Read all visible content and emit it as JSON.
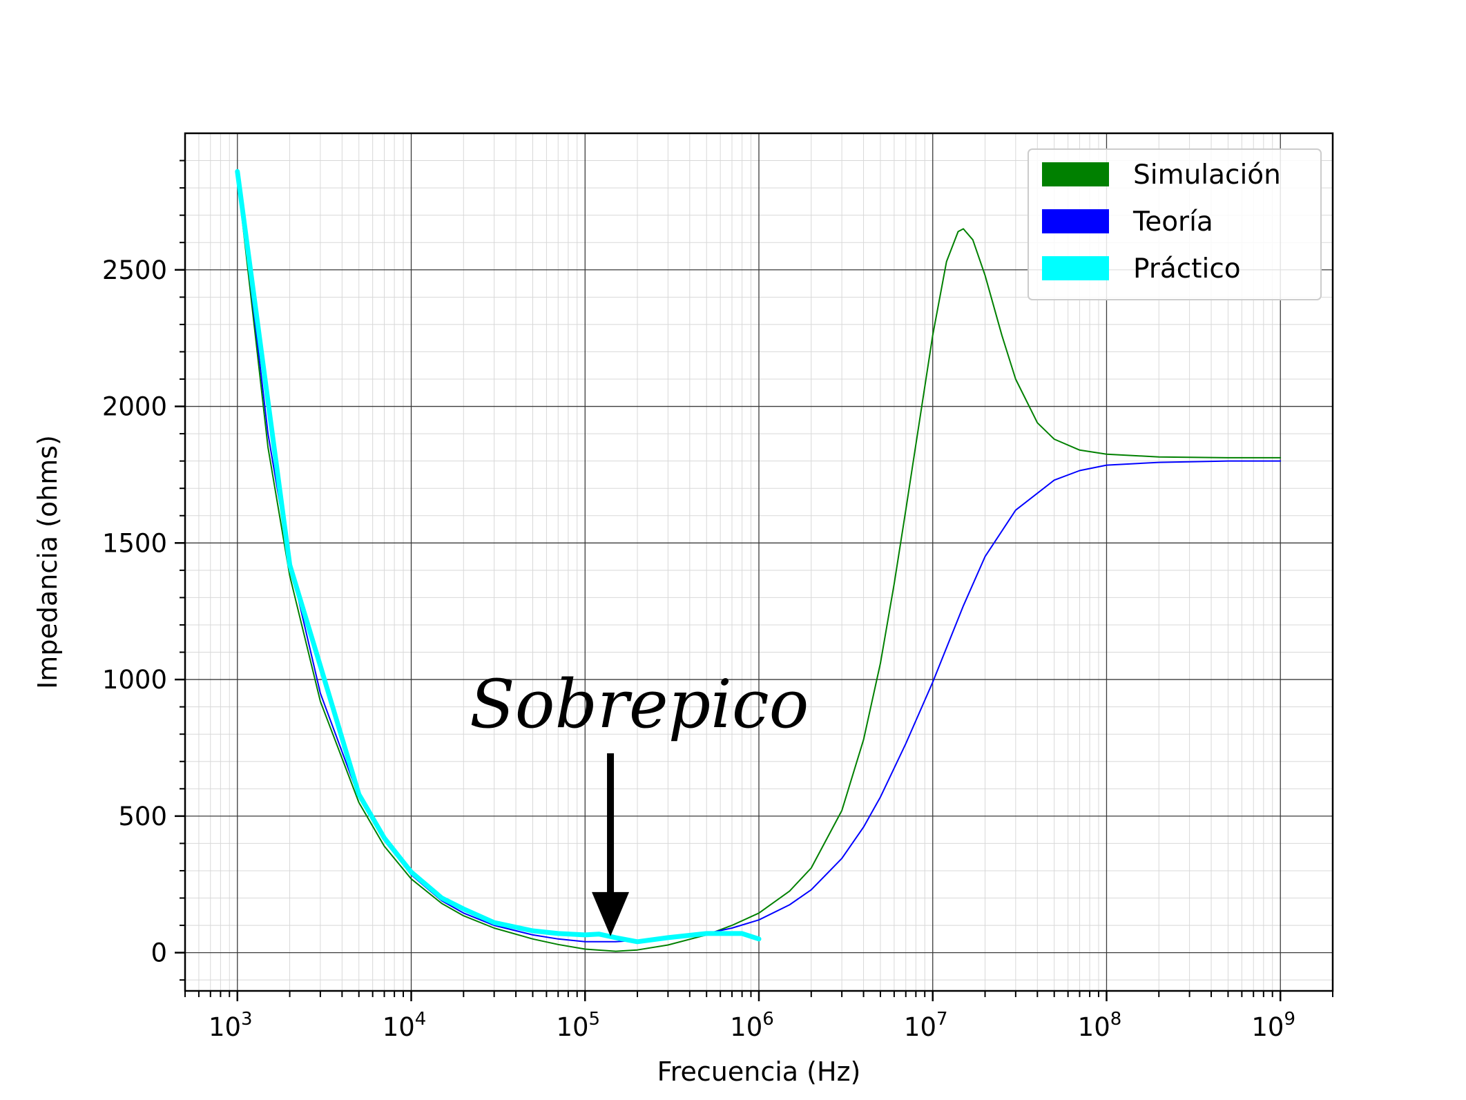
{
  "chart_data": {
    "type": "line",
    "title": "",
    "xlabel": "Frecuencia (Hz)",
    "ylabel": "Impedancia (ohms)",
    "xscale": "log",
    "xlim": [
      500,
      2000000000
    ],
    "ylim": [
      -140,
      3000
    ],
    "grid": "on (major and minor)",
    "legend_position": "top-right",
    "x_ticks": [
      {
        "value": 1000,
        "base": "10",
        "exp": "3"
      },
      {
        "value": 10000,
        "base": "10",
        "exp": "4"
      },
      {
        "value": 100000,
        "base": "10",
        "exp": "5"
      },
      {
        "value": 1000000,
        "base": "10",
        "exp": "6"
      },
      {
        "value": 10000000,
        "base": "10",
        "exp": "7"
      },
      {
        "value": 100000000,
        "base": "10",
        "exp": "8"
      },
      {
        "value": 1000000000,
        "base": "10",
        "exp": "9"
      }
    ],
    "y_ticks": [
      {
        "value": 0,
        "label": "0"
      },
      {
        "value": 500,
        "label": "500"
      },
      {
        "value": 1000,
        "label": "1000"
      },
      {
        "value": 1500,
        "label": "1500"
      },
      {
        "value": 2000,
        "label": "2000"
      },
      {
        "value": 2500,
        "label": "2500"
      }
    ],
    "series": [
      {
        "name": "Simulación",
        "color": "#008000",
        "points": [
          [
            1000,
            2840
          ],
          [
            1500,
            1850
          ],
          [
            2000,
            1380
          ],
          [
            3000,
            920
          ],
          [
            5000,
            550
          ],
          [
            7000,
            390
          ],
          [
            10000,
            270
          ],
          [
            15000,
            180
          ],
          [
            20000,
            135
          ],
          [
            30000,
            90
          ],
          [
            50000,
            50
          ],
          [
            70000,
            30
          ],
          [
            100000,
            13
          ],
          [
            150000,
            5
          ],
          [
            200000,
            10
          ],
          [
            300000,
            28
          ],
          [
            500000,
            65
          ],
          [
            700000,
            100
          ],
          [
            1000000,
            145
          ],
          [
            1500000,
            225
          ],
          [
            2000000,
            310
          ],
          [
            3000000,
            520
          ],
          [
            4000000,
            780
          ],
          [
            5000000,
            1060
          ],
          [
            6000000,
            1350
          ],
          [
            7000000,
            1620
          ],
          [
            8000000,
            1860
          ],
          [
            10000000,
            2260
          ],
          [
            12000000,
            2530
          ],
          [
            14000000,
            2640
          ],
          [
            15000000,
            2650
          ],
          [
            17000000,
            2610
          ],
          [
            20000000,
            2480
          ],
          [
            25000000,
            2260
          ],
          [
            30000000,
            2100
          ],
          [
            40000000,
            1940
          ],
          [
            50000000,
            1880
          ],
          [
            70000000,
            1840
          ],
          [
            100000000,
            1825
          ],
          [
            200000000,
            1815
          ],
          [
            500000000,
            1812
          ],
          [
            1000000000,
            1812
          ]
        ]
      },
      {
        "name": "Teoría",
        "color": "#0000ff",
        "points": [
          [
            1000,
            2860
          ],
          [
            1500,
            1900
          ],
          [
            2000,
            1430
          ],
          [
            3000,
            950
          ],
          [
            5000,
            570
          ],
          [
            7000,
            410
          ],
          [
            10000,
            285
          ],
          [
            15000,
            190
          ],
          [
            20000,
            145
          ],
          [
            30000,
            100
          ],
          [
            50000,
            65
          ],
          [
            70000,
            50
          ],
          [
            100000,
            40
          ],
          [
            150000,
            40
          ],
          [
            200000,
            45
          ],
          [
            300000,
            55
          ],
          [
            500000,
            70
          ],
          [
            700000,
            90
          ],
          [
            1000000,
            120
          ],
          [
            1500000,
            175
          ],
          [
            2000000,
            230
          ],
          [
            3000000,
            345
          ],
          [
            4000000,
            460
          ],
          [
            5000000,
            570
          ],
          [
            7000000,
            765
          ],
          [
            10000000,
            990
          ],
          [
            15000000,
            1270
          ],
          [
            20000000,
            1450
          ],
          [
            30000000,
            1620
          ],
          [
            50000000,
            1730
          ],
          [
            70000000,
            1765
          ],
          [
            100000000,
            1785
          ],
          [
            200000000,
            1795
          ],
          [
            500000000,
            1800
          ],
          [
            1000000000,
            1800
          ]
        ]
      },
      {
        "name": "Práctico",
        "color": "#00ffff",
        "points": [
          [
            1000,
            2860
          ],
          [
            2000,
            1420
          ],
          [
            3000,
            1050
          ],
          [
            5000,
            580
          ],
          [
            7000,
            420
          ],
          [
            10000,
            295
          ],
          [
            15000,
            200
          ],
          [
            20000,
            160
          ],
          [
            30000,
            110
          ],
          [
            50000,
            80
          ],
          [
            70000,
            70
          ],
          [
            100000,
            65
          ],
          [
            120000,
            68
          ],
          [
            150000,
            55
          ],
          [
            200000,
            40
          ],
          [
            300000,
            55
          ],
          [
            500000,
            70
          ],
          [
            700000,
            70
          ],
          [
            800000,
            70
          ],
          [
            1000000,
            50
          ]
        ]
      }
    ],
    "annotation": {
      "text": "Sobrepico",
      "arrow_x": 140000,
      "arrow_tip_y": 60,
      "arrow_tail_y": 730
    }
  }
}
